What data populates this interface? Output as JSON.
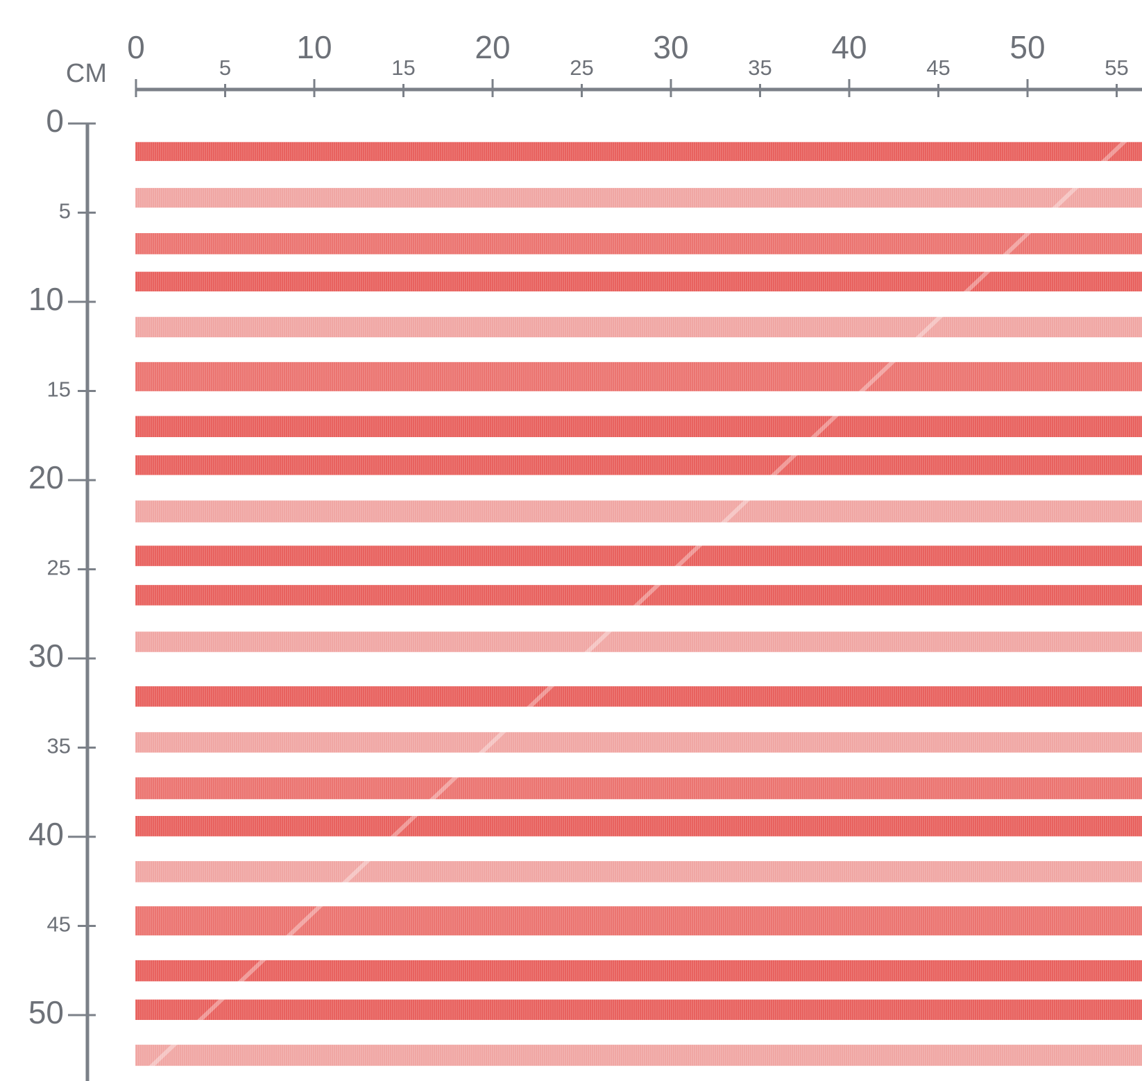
{
  "unit": "CM",
  "top_ruler": {
    "labels": [
      0,
      5,
      10,
      15,
      20,
      25,
      30,
      35,
      40,
      45,
      50,
      55
    ]
  },
  "left_ruler": {
    "labels": [
      0,
      5,
      10,
      15,
      20,
      25,
      30,
      35,
      40,
      45,
      50
    ]
  }
}
